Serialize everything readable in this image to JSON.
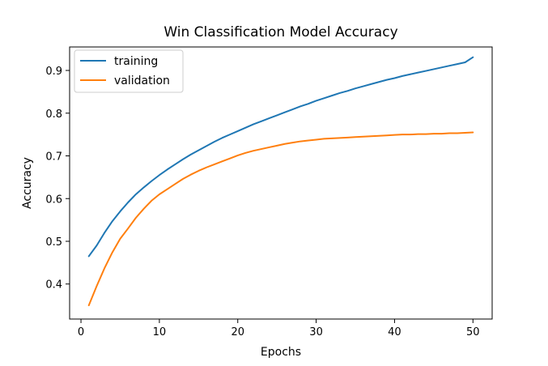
{
  "chart_data": {
    "type": "line",
    "title": "Win Classification Model Accuracy",
    "xlabel": "Epochs",
    "ylabel": "Accuracy",
    "xlim": [
      -1.45,
      52.45
    ],
    "ylim": [
      0.318,
      0.955
    ],
    "xticks": [
      0,
      10,
      20,
      30,
      40,
      50
    ],
    "xtick_labels": [
      "0",
      "10",
      "20",
      "30",
      "40",
      "50"
    ],
    "yticks": [
      0.4,
      0.5,
      0.6,
      0.7,
      0.8,
      0.9
    ],
    "ytick_labels": [
      "0.4",
      "0.5",
      "0.6",
      "0.7",
      "0.8",
      "0.9"
    ],
    "grid": false,
    "legend_position": "top-left",
    "x": [
      1,
      2,
      3,
      4,
      5,
      6,
      7,
      8,
      9,
      10,
      11,
      12,
      13,
      14,
      15,
      16,
      17,
      18,
      19,
      20,
      21,
      22,
      23,
      24,
      25,
      26,
      27,
      28,
      29,
      30,
      31,
      32,
      33,
      34,
      35,
      36,
      37,
      38,
      39,
      40,
      41,
      42,
      43,
      44,
      45,
      46,
      47,
      48,
      49,
      50
    ],
    "series": [
      {
        "name": "training",
        "color": "#1f77b4",
        "values": [
          0.465,
          0.49,
          0.52,
          0.547,
          0.57,
          0.591,
          0.61,
          0.626,
          0.641,
          0.655,
          0.668,
          0.68,
          0.692,
          0.703,
          0.713,
          0.723,
          0.733,
          0.742,
          0.75,
          0.758,
          0.766,
          0.774,
          0.781,
          0.788,
          0.795,
          0.802,
          0.809,
          0.816,
          0.822,
          0.829,
          0.835,
          0.841,
          0.847,
          0.852,
          0.858,
          0.863,
          0.868,
          0.873,
          0.878,
          0.882,
          0.887,
          0.891,
          0.895,
          0.899,
          0.903,
          0.907,
          0.911,
          0.915,
          0.919,
          0.931
        ]
      },
      {
        "name": "validation",
        "color": "#ff7f0e",
        "values": [
          0.35,
          0.395,
          0.437,
          0.474,
          0.506,
          0.53,
          0.555,
          0.576,
          0.595,
          0.61,
          0.622,
          0.634,
          0.646,
          0.656,
          0.665,
          0.673,
          0.68,
          0.687,
          0.694,
          0.701,
          0.707,
          0.712,
          0.716,
          0.72,
          0.724,
          0.728,
          0.731,
          0.734,
          0.736,
          0.738,
          0.74,
          0.741,
          0.742,
          0.743,
          0.744,
          0.745,
          0.746,
          0.747,
          0.748,
          0.749,
          0.75,
          0.75,
          0.751,
          0.751,
          0.752,
          0.752,
          0.753,
          0.753,
          0.754,
          0.755
        ]
      }
    ]
  }
}
